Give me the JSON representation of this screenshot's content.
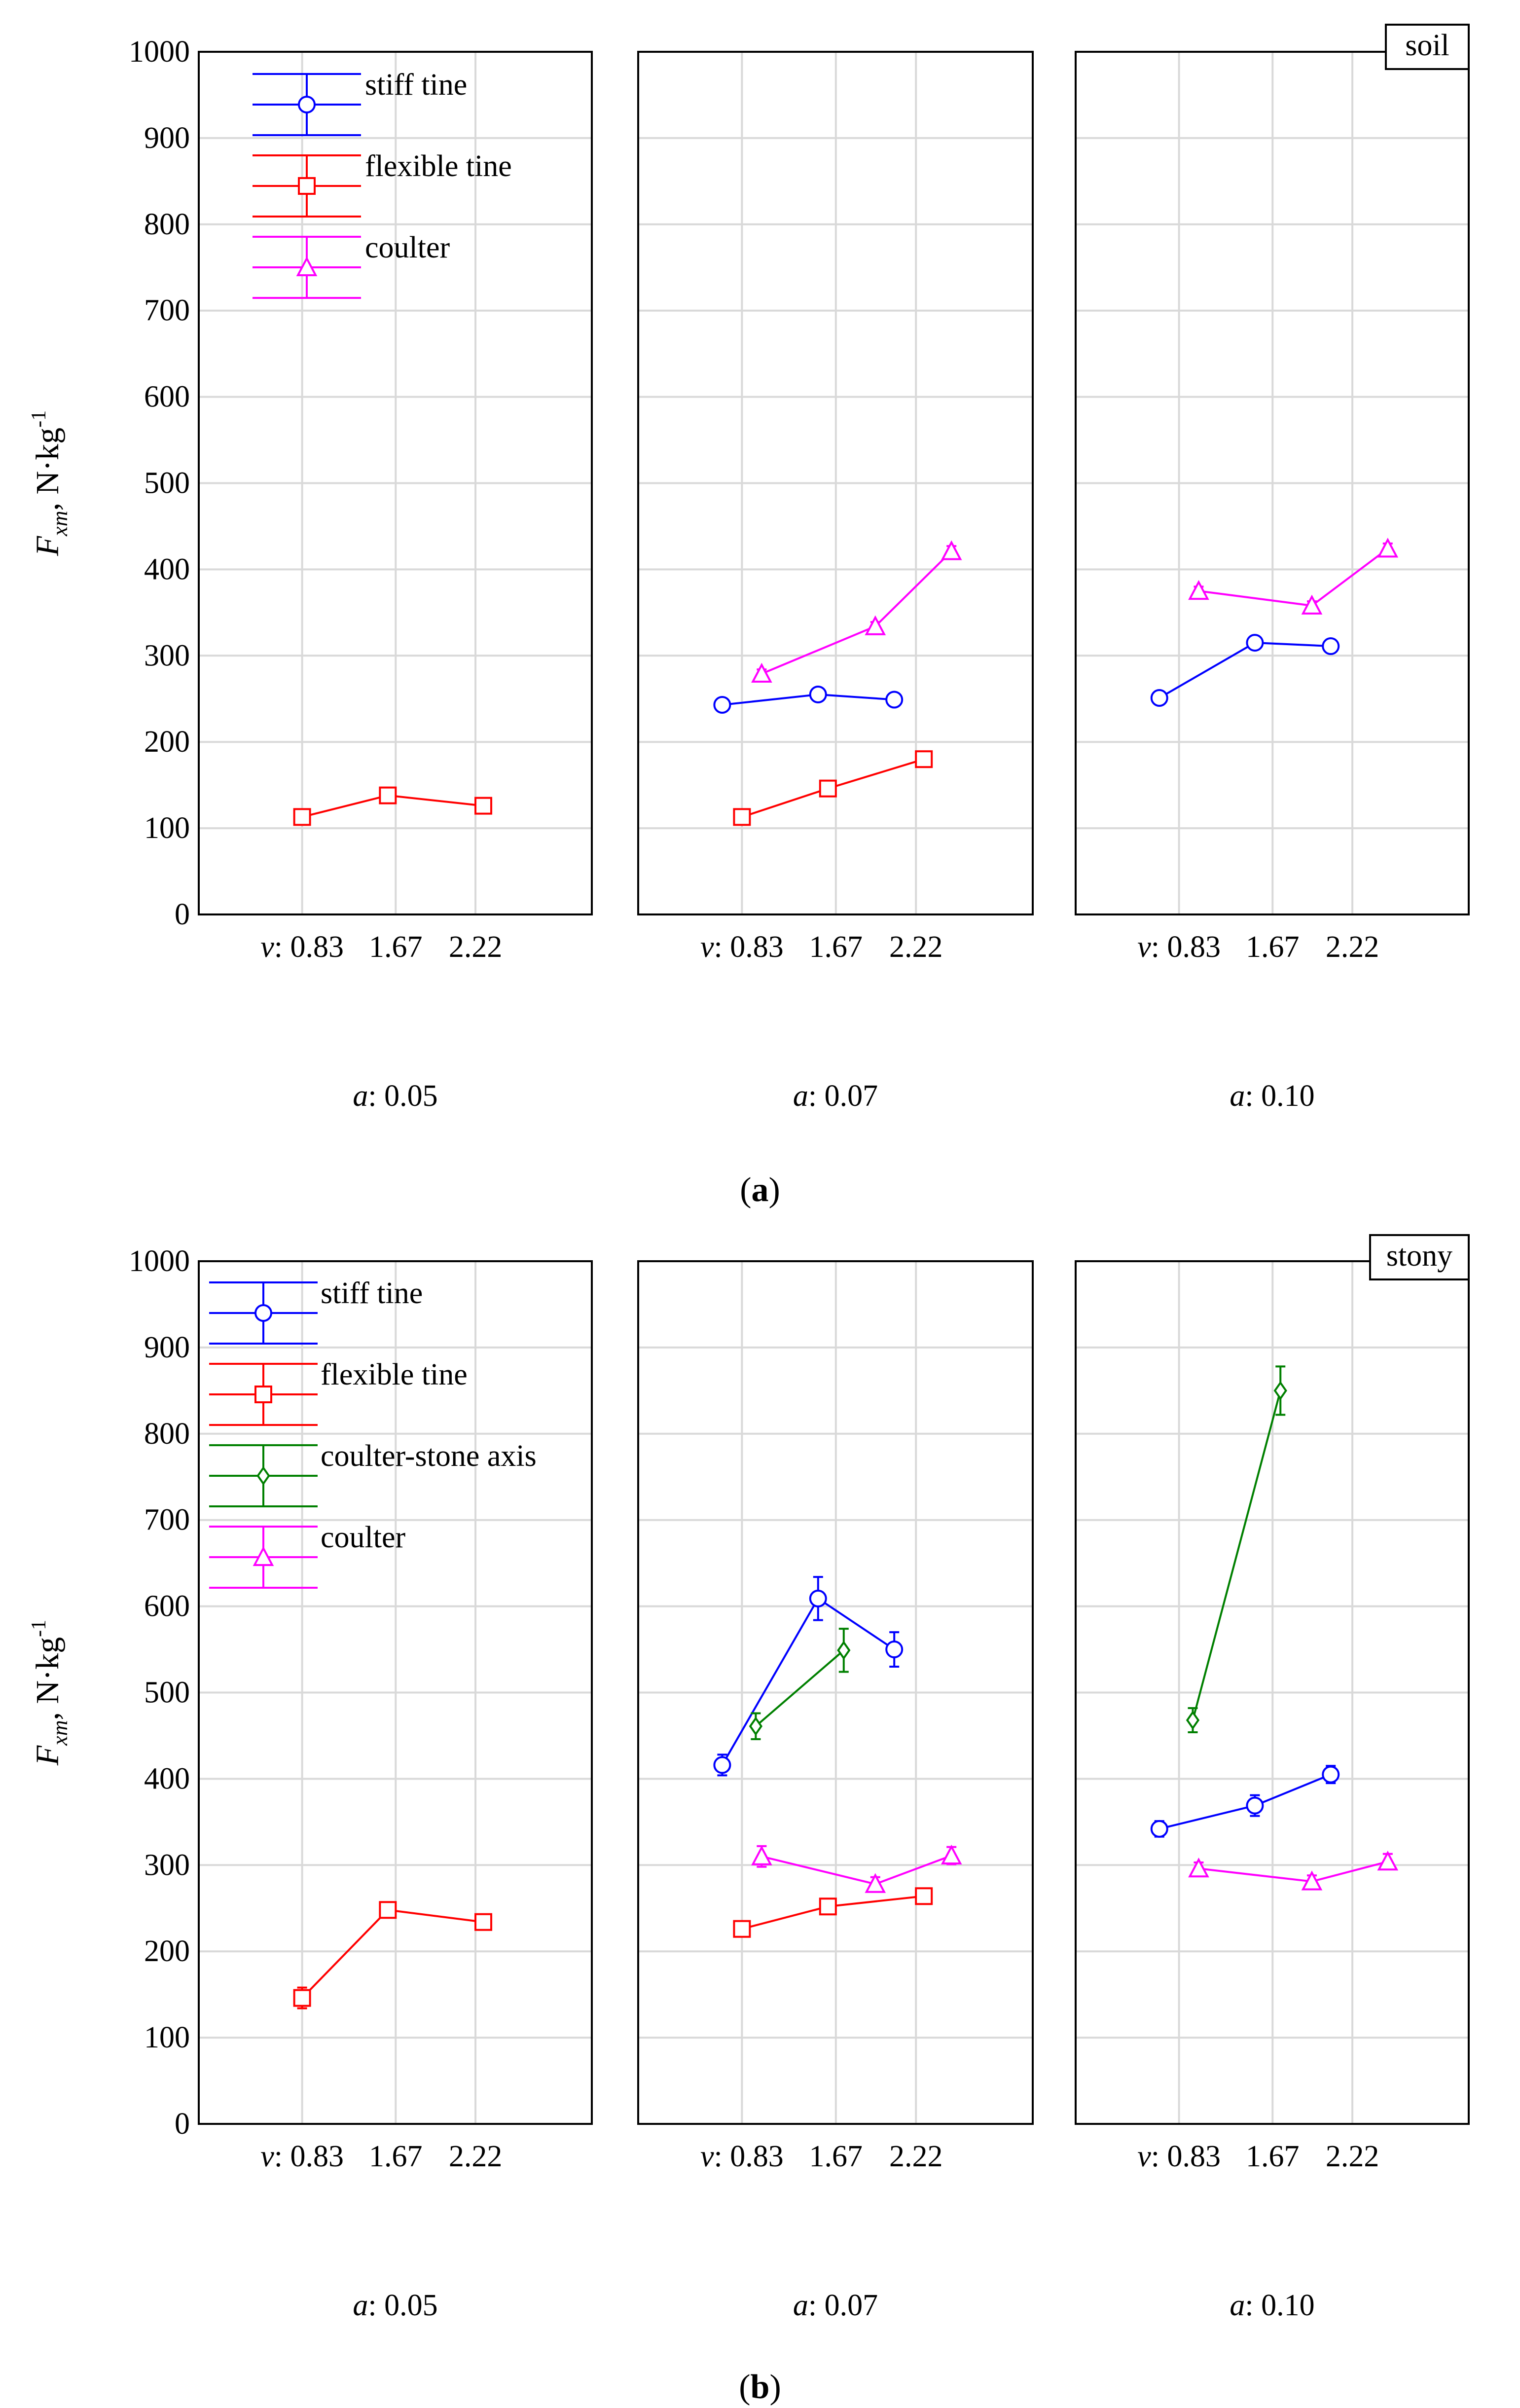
{
  "figure": {
    "captions": [
      {
        "pre": "(",
        "letter": "a",
        "post": ")"
      },
      {
        "pre": "(",
        "letter": "b",
        "post": ")"
      }
    ]
  },
  "colors": {
    "stiff tine": "#0000ff",
    "flexible tine": "#ff0000",
    "coulter": "#ff00ff",
    "coulter-stone axis": "#008000"
  },
  "markers": {
    "stiff tine": "circle",
    "flexible tine": "square",
    "coulter": "triangle",
    "coulter-stone axis": "diamond"
  },
  "chart_data": [
    {
      "id": "a",
      "type": "line",
      "tag": "soil",
      "ylabel": {
        "main": "F",
        "sub": "xm",
        "unit": ", N·kg",
        "exp": "-1"
      },
      "ylim": [
        0,
        1000
      ],
      "yticks": [
        0,
        100,
        200,
        300,
        400,
        500,
        600,
        700,
        800,
        900,
        1000
      ],
      "grid": true,
      "legend": [
        "stiff tine",
        "flexible tine",
        "coulter"
      ],
      "panels": [
        {
          "title": "a: 0.05",
          "xticks": [
            "v: 0.83",
            "1.67",
            "2.22"
          ],
          "series": [
            {
              "name": "flexible tine",
              "points": [
                {
                  "x": "0.83",
                  "y": 113,
                  "err": 6
                },
                {
                  "x": "1.67",
                  "y": 138,
                  "err": 6
                },
                {
                  "x": "2.22",
                  "y": 126,
                  "err": 6
                }
              ]
            }
          ]
        },
        {
          "title": "a: 0.07",
          "xticks": [
            "v: 0.83",
            "1.67",
            "2.22"
          ],
          "series": [
            {
              "name": "stiff tine",
              "points": [
                {
                  "x": "0.83",
                  "y": 243,
                  "err": 5
                },
                {
                  "x": "1.67",
                  "y": 255,
                  "err": 5
                },
                {
                  "x": "2.22",
                  "y": 249,
                  "err": 5
                }
              ]
            },
            {
              "name": "flexible tine",
              "points": [
                {
                  "x": "0.83",
                  "y": 113,
                  "err": 6
                },
                {
                  "x": "1.67",
                  "y": 146,
                  "err": 6
                },
                {
                  "x": "2.22",
                  "y": 180,
                  "err": 6
                }
              ]
            },
            {
              "name": "coulter",
              "points": [
                {
                  "x": "0.83",
                  "y": 279,
                  "err": 5
                },
                {
                  "x": "1.67",
                  "y": 334,
                  "err": 5
                },
                {
                  "x": "2.22",
                  "y": 421,
                  "err": 6
                }
              ]
            }
          ]
        },
        {
          "title": "a: 0.10",
          "xticks": [
            "v: 0.83",
            "1.67",
            "2.22"
          ],
          "series": [
            {
              "name": "stiff tine",
              "points": [
                {
                  "x": "0.83",
                  "y": 251,
                  "err": 6
                },
                {
                  "x": "1.67",
                  "y": 315,
                  "err": 6
                },
                {
                  "x": "2.22",
                  "y": 311,
                  "err": 6
                }
              ]
            },
            {
              "name": "coulter",
              "points": [
                {
                  "x": "0.83",
                  "y": 375,
                  "err": 5
                },
                {
                  "x": "1.67",
                  "y": 358,
                  "err": 5
                },
                {
                  "x": "2.22",
                  "y": 424,
                  "err": 6
                }
              ]
            }
          ]
        }
      ]
    },
    {
      "id": "b",
      "type": "line",
      "tag": "stony",
      "ylabel": {
        "main": "F",
        "sub": "xm",
        "unit": ", N·kg",
        "exp": "-1"
      },
      "ylim": [
        0,
        1000
      ],
      "yticks": [
        0,
        100,
        200,
        300,
        400,
        500,
        600,
        700,
        800,
        900,
        1000
      ],
      "grid": true,
      "legend": [
        "stiff tine",
        "flexible tine",
        "coulter-stone axis",
        "coulter"
      ],
      "panels": [
        {
          "title": "a: 0.05",
          "xticks": [
            "v: 0.83",
            "1.67",
            "2.22"
          ],
          "series": [
            {
              "name": "flexible tine",
              "points": [
                {
                  "x": "0.83",
                  "y": 146,
                  "err": 12
                },
                {
                  "x": "1.67",
                  "y": 248,
                  "err": 8
                },
                {
                  "x": "2.22",
                  "y": 234,
                  "err": 7
                }
              ]
            }
          ]
        },
        {
          "title": "a: 0.07",
          "xticks": [
            "v: 0.83",
            "1.67",
            "2.22"
          ],
          "series": [
            {
              "name": "stiff tine",
              "points": [
                {
                  "x": "0.83",
                  "y": 416,
                  "err": 12
                },
                {
                  "x": "1.67",
                  "y": 609,
                  "err": 25
                },
                {
                  "x": "2.22",
                  "y": 550,
                  "err": 20
                }
              ]
            },
            {
              "name": "coulter-stone axis",
              "points": [
                {
                  "x": "0.83",
                  "y": 461,
                  "err": 15
                },
                {
                  "x": "1.67",
                  "y": 549,
                  "err": 25
                }
              ]
            },
            {
              "name": "flexible tine",
              "points": [
                {
                  "x": "0.83",
                  "y": 226,
                  "err": 7
                },
                {
                  "x": "1.67",
                  "y": 252,
                  "err": 8
                },
                {
                  "x": "2.22",
                  "y": 264,
                  "err": 8
                }
              ]
            },
            {
              "name": "coulter",
              "points": [
                {
                  "x": "0.83",
                  "y": 310,
                  "err": 12
                },
                {
                  "x": "1.67",
                  "y": 278,
                  "err": 8
                },
                {
                  "x": "2.22",
                  "y": 311,
                  "err": 10
                }
              ]
            }
          ]
        },
        {
          "title": "a: 0.10",
          "xticks": [
            "v: 0.83",
            "1.67",
            "2.22"
          ],
          "series": [
            {
              "name": "coulter-stone axis",
              "points": [
                {
                  "x": "0.83",
                  "y": 468,
                  "err": 14
                },
                {
                  "x": "1.67",
                  "y": 850,
                  "err": 28
                }
              ]
            },
            {
              "name": "stiff tine",
              "points": [
                {
                  "x": "0.83",
                  "y": 342,
                  "err": 9
                },
                {
                  "x": "1.67",
                  "y": 369,
                  "err": 12
                },
                {
                  "x": "2.22",
                  "y": 405,
                  "err": 10
                }
              ]
            },
            {
              "name": "coulter",
              "points": [
                {
                  "x": "0.83",
                  "y": 296,
                  "err": 7
                },
                {
                  "x": "1.67",
                  "y": 281,
                  "err": 7
                },
                {
                  "x": "2.22",
                  "y": 304,
                  "err": 9
                }
              ]
            }
          ]
        }
      ]
    }
  ]
}
